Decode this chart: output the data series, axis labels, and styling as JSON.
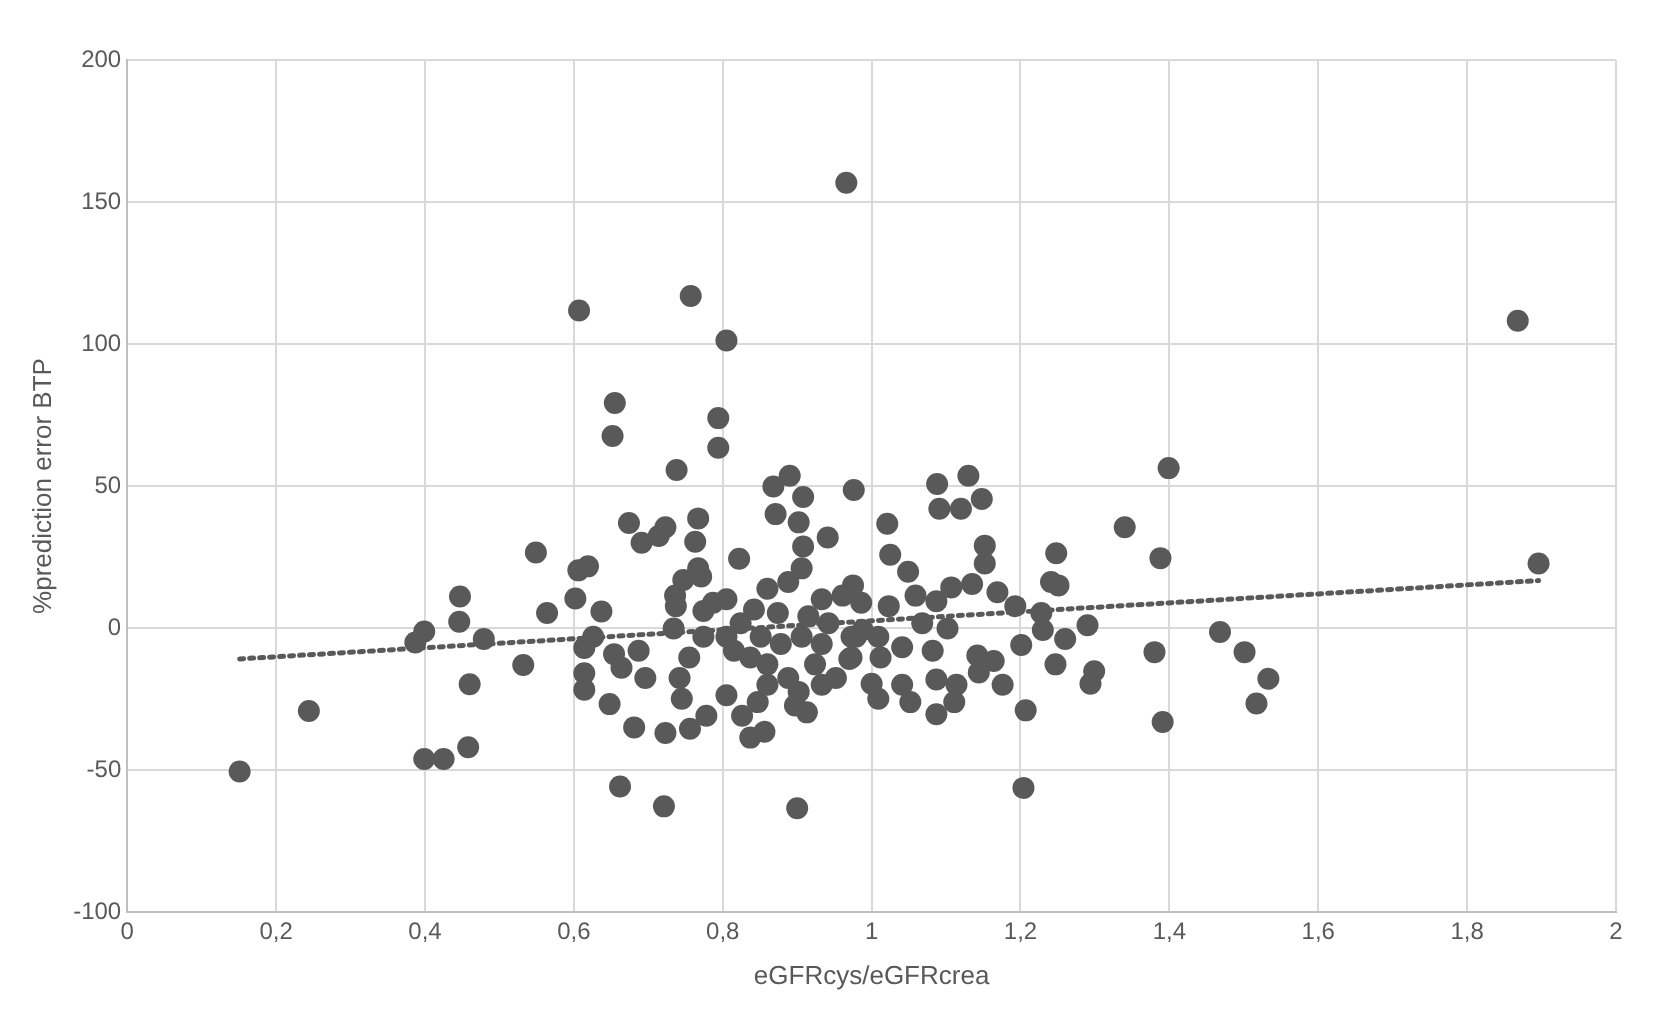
{
  "chart_data": {
    "type": "scatter",
    "xlabel": "eGFRcys/eGFRcrea",
    "ylabel": "%prediction error BTP",
    "xlim": [
      0,
      2
    ],
    "ylim": [
      -100,
      200
    ],
    "xticks": [
      0,
      {
        "value": 0.2,
        "label": "0,2"
      },
      {
        "value": 0.4,
        "label": "0,4"
      },
      {
        "value": 0.6,
        "label": "0,6"
      },
      {
        "value": 0.8,
        "label": "0,8"
      },
      1,
      {
        "value": 1.2,
        "label": "1,2"
      },
      {
        "value": 1.4,
        "label": "1,4"
      },
      {
        "value": 1.6,
        "label": "1,6"
      },
      {
        "value": 1.8,
        "label": "1,8"
      },
      2
    ],
    "yticks": [
      -100,
      -50,
      0,
      50,
      100,
      150,
      200
    ],
    "grid": true,
    "legend": false,
    "series": [
      {
        "type": "scatter",
        "color": "#595959",
        "marker": "circle",
        "x": [
          0.966,
          0.607,
          0.757,
          0.805,
          0.655,
          0.652,
          0.794,
          0.794,
          0.738,
          0.868,
          0.89,
          0.908,
          0.976,
          0.871,
          0.902,
          0.908,
          0.941,
          0.674,
          0.691,
          0.714,
          0.723,
          0.767,
          0.763,
          0.549,
          0.606,
          0.619,
          0.602,
          0.564,
          0.637,
          0.447,
          0.446,
          0.479,
          0.399,
          0.387,
          0.532,
          0.46,
          0.244,
          0.151,
          0.399,
          0.425,
          0.458,
          0.662,
          0.721,
          0.9,
          0.822,
          0.767,
          0.771,
          0.747,
          0.736,
          0.737,
          0.774,
          0.734,
          0.626,
          0.614,
          0.614,
          0.614,
          0.648,
          0.681,
          0.723,
          0.756,
          0.778,
          0.745,
          0.742,
          0.687,
          0.654,
          0.664,
          0.696,
          0.755,
          0.774,
          0.787,
          0.805,
          0.837,
          0.856,
          0.826,
          0.805,
          0.847,
          0.897,
          0.913,
          0.902,
          0.86,
          0.888,
          0.933,
          0.952,
          0.97,
          0.924,
          0.86,
          0.837,
          0.815,
          0.851,
          0.878,
          0.906,
          0.933,
          0.979,
          0.86,
          0.888,
          0.906,
          0.933,
          0.961,
          0.975,
          0.988,
          0.824,
          0.805,
          0.842,
          0.874,
          0.915,
          0.942,
          1.868,
          1.896,
          1.399,
          1.34,
          1.388,
          1.468,
          1.501,
          1.533,
          1.517,
          1.38,
          1.391,
          1.204,
          1.207,
          1.29,
          1.26,
          1.247,
          1.241,
          1.251,
          1.248,
          1.228,
          1.23,
          1.193,
          1.201,
          1.176,
          1.164,
          1.142,
          1.144,
          1.169,
          1.152,
          1.152,
          1.135,
          1.148,
          1.13,
          1.12,
          1.091,
          1.088,
          1.021,
          1.025,
          1.049,
          1.107,
          1.087,
          1.059,
          1.102,
          1.068,
          1.023,
          0.986,
          0.973,
          0.973,
          1.009,
          1.041,
          1.082,
          1.012,
          1.0,
          1.009,
          1.052,
          1.041,
          1.087,
          1.114,
          1.111,
          1.087,
          1.299,
          1.294
        ],
        "values": [
          156.8,
          111.8,
          116.9,
          101.2,
          79.2,
          67.6,
          73.9,
          63.5,
          55.6,
          49.8,
          53.6,
          46.1,
          48.6,
          40.1,
          37.2,
          28.7,
          31.9,
          37.0,
          30.0,
          32.4,
          35.5,
          38.6,
          30.4,
          26.6,
          20.3,
          21.7,
          10.4,
          5.3,
          5.8,
          11.1,
          2.2,
          -3.9,
          -1.2,
          -5.1,
          -13.0,
          -19.8,
          -29.2,
          -50.5,
          -46.1,
          -46.1,
          -42.0,
          -55.8,
          -62.8,
          -63.5,
          24.4,
          21.0,
          18.1,
          16.9,
          11.4,
          7.7,
          6.0,
          -0.2,
          -3.1,
          -7.0,
          -15.9,
          -21.7,
          -26.8,
          -35.0,
          -37.0,
          -35.5,
          -30.9,
          -24.9,
          -17.6,
          -8.0,
          -9.2,
          -14.0,
          -17.6,
          -10.4,
          -3.1,
          8.9,
          10.1,
          -38.6,
          -36.5,
          -30.9,
          -23.7,
          -26.1,
          -27.3,
          -29.7,
          -22.5,
          -20.0,
          -17.6,
          -20.0,
          -17.6,
          -10.9,
          -12.8,
          -12.8,
          -10.4,
          -8.0,
          -3.1,
          -5.6,
          -3.1,
          -5.6,
          -3.1,
          13.8,
          16.2,
          21.0,
          10.1,
          11.4,
          15.0,
          -0.7,
          1.7,
          -3.1,
          6.5,
          5.3,
          4.1,
          1.7,
          108.2,
          22.7,
          56.3,
          35.5,
          24.6,
          -1.4,
          -8.5,
          -17.9,
          -26.6,
          -8.5,
          -33.1,
          -56.3,
          -29.0,
          1.0,
          -3.9,
          -12.8,
          16.2,
          15.0,
          26.3,
          5.3,
          -0.7,
          7.7,
          -6.0,
          -20.0,
          -11.6,
          -9.7,
          -15.7,
          12.6,
          29.0,
          22.7,
          15.5,
          45.4,
          53.6,
          42.0,
          42.0,
          50.7,
          36.7,
          25.8,
          19.8,
          14.3,
          9.4,
          11.4,
          -0.2,
          1.7,
          7.7,
          8.9,
          -3.1,
          -10.4,
          -3.1,
          -6.8,
          -8.0,
          -10.4,
          -19.6,
          -24.9,
          -26.1,
          -20.0,
          -18.1,
          -20.0,
          -26.1,
          -30.4,
          -15.2,
          -19.6
        ]
      },
      {
        "type": "line",
        "color": "#595959",
        "marker": "none",
        "line_style": "dotted",
        "x": [
          0.151,
          1.896
        ],
        "values": [
          -10.9,
          16.7
        ]
      }
    ]
  }
}
